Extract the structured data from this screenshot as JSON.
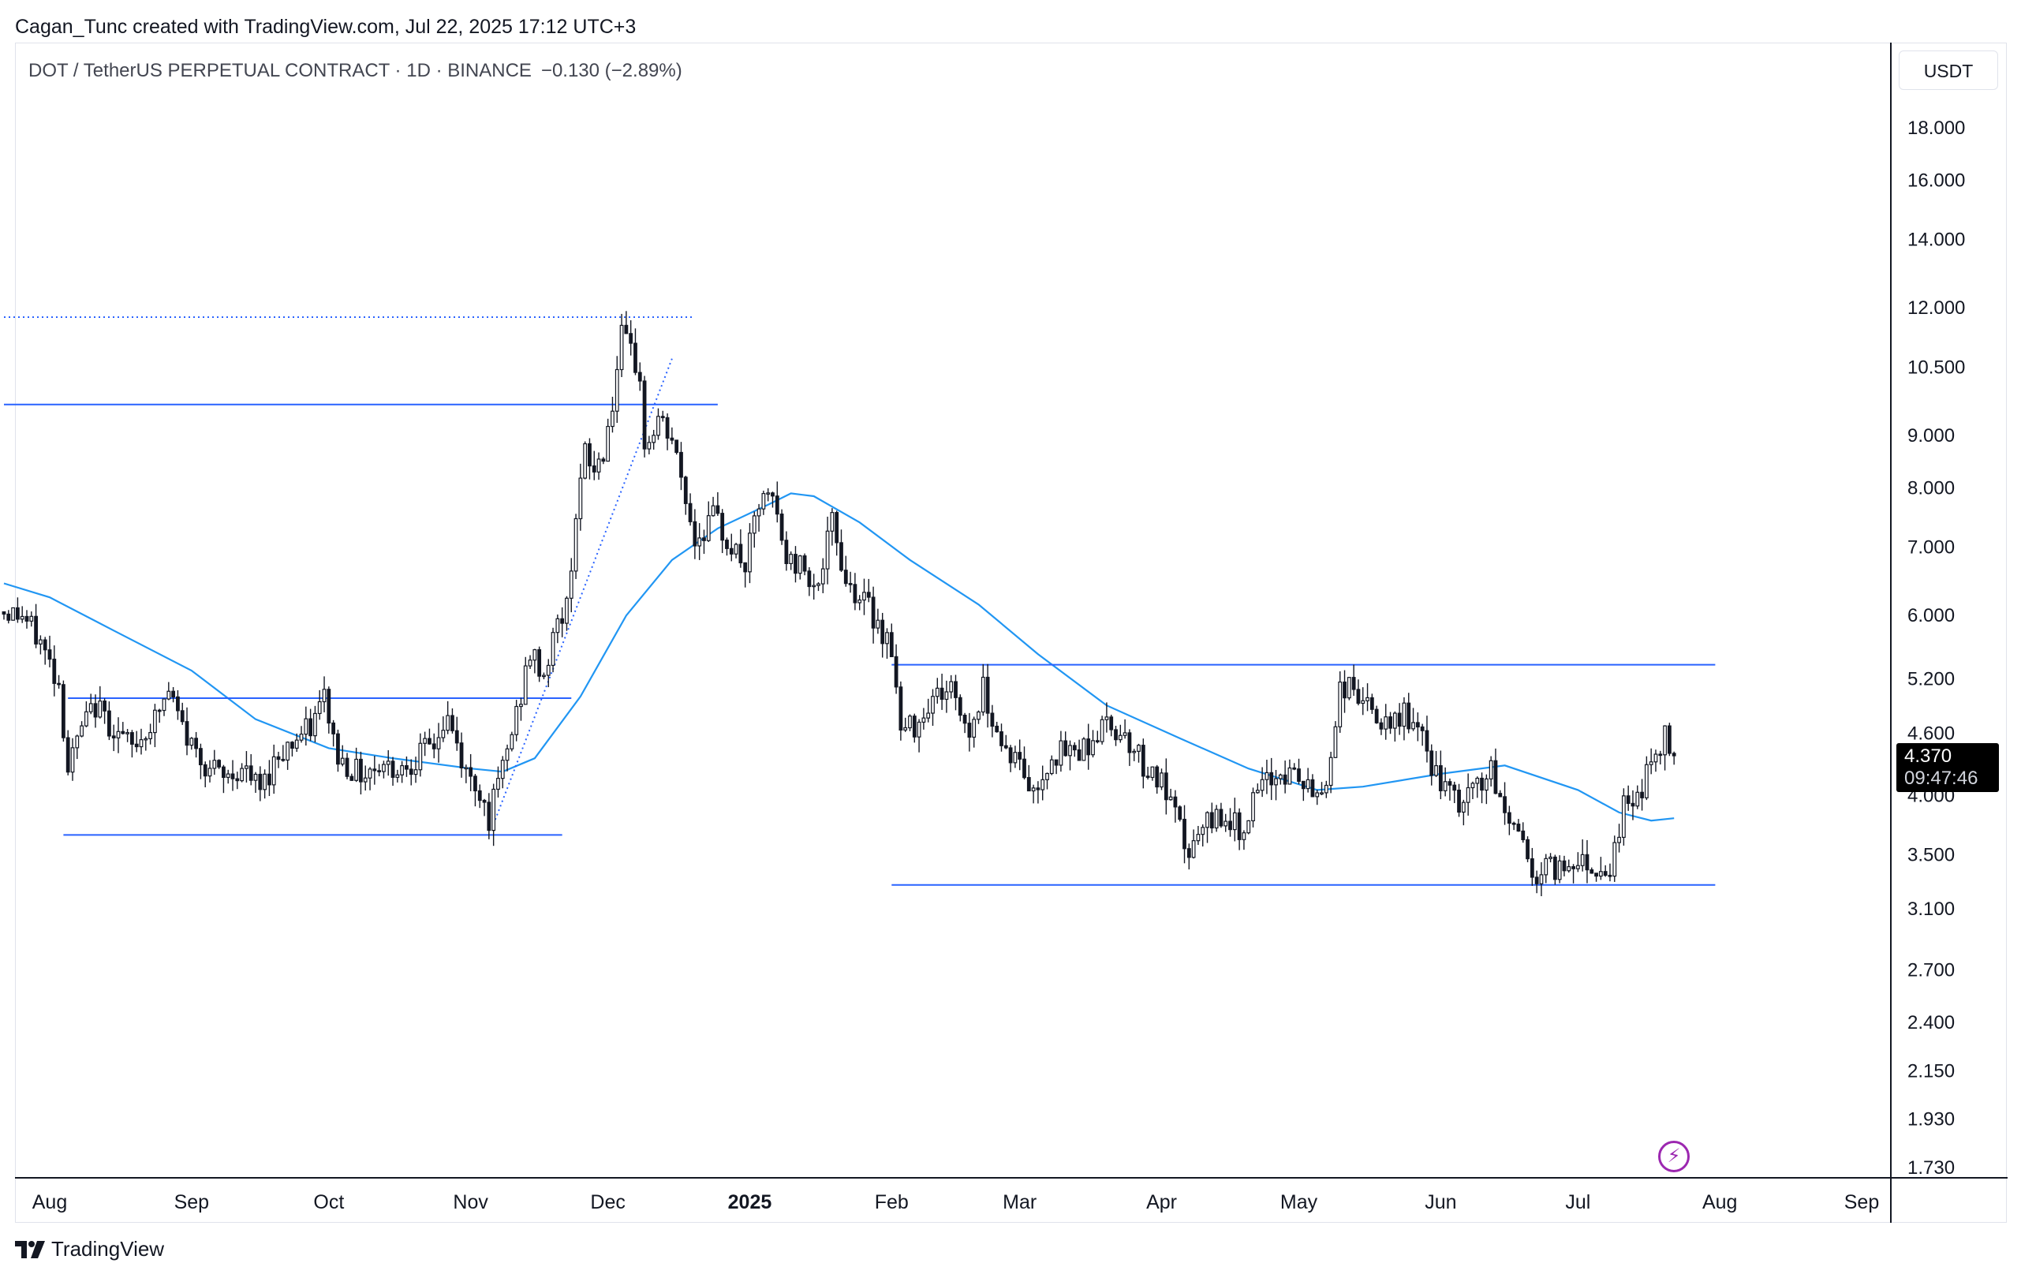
{
  "header": {
    "credit": "Cagan_Tunc created with TradingView.com, Jul 22, 2025 17:12 UTC+3"
  },
  "symbol": {
    "title": "DOT / TetherUS PERPETUAL CONTRACT · 1D · BINANCE",
    "change": "−0.130 (−2.89%)"
  },
  "currency": "USDT",
  "last_price": {
    "value": "4.370",
    "countdown": "09:47:46"
  },
  "brand": "TradingView",
  "colors": {
    "up": "#ffffff",
    "down": "#131722",
    "wick": "#131722",
    "ma": "#2196f3",
    "levels": "#2962ff",
    "tag_bg": "#000000",
    "accent": "#9c27b0"
  },
  "icons": {
    "brand": "tradingview-logo-icon",
    "alert": "lightning-icon"
  },
  "chart_data": {
    "type": "candlestick",
    "scale": "log",
    "ylim": [
      1.7,
      20.5
    ],
    "y_ticks": [
      {
        "value": 18.0,
        "label": "18.000"
      },
      {
        "value": 16.0,
        "label": "16.000"
      },
      {
        "value": 14.0,
        "label": "14.000"
      },
      {
        "value": 12.0,
        "label": "12.000"
      },
      {
        "value": 10.5,
        "label": "10.500"
      },
      {
        "value": 9.0,
        "label": "9.000"
      },
      {
        "value": 8.0,
        "label": "8.000"
      },
      {
        "value": 7.0,
        "label": "7.000"
      },
      {
        "value": 6.0,
        "label": "6.000"
      },
      {
        "value": 5.2,
        "label": "5.200"
      },
      {
        "value": 4.6,
        "label": "4.600"
      },
      {
        "value": 4.0,
        "label": "4.000"
      },
      {
        "value": 3.5,
        "label": "3.500"
      },
      {
        "value": 3.1,
        "label": "3.100"
      },
      {
        "value": 2.7,
        "label": "2.700"
      },
      {
        "value": 2.4,
        "label": "2.400"
      },
      {
        "value": 2.15,
        "label": "2.150"
      },
      {
        "value": 1.93,
        "label": "1.930"
      },
      {
        "value": 1.73,
        "label": "1.730"
      }
    ],
    "x_range": [
      "2024-07-22",
      "2025-09-30"
    ],
    "x_ticks": [
      {
        "date": "2024-08-01",
        "label": "Aug",
        "bold": false
      },
      {
        "date": "2024-09-01",
        "label": "Sep",
        "bold": false
      },
      {
        "date": "2024-10-01",
        "label": "Oct",
        "bold": false
      },
      {
        "date": "2024-11-01",
        "label": "Nov",
        "bold": false
      },
      {
        "date": "2024-12-01",
        "label": "Dec",
        "bold": false
      },
      {
        "date": "2025-01-01",
        "label": "2025",
        "bold": true
      },
      {
        "date": "2025-02-01",
        "label": "Feb",
        "bold": false
      },
      {
        "date": "2025-03-01",
        "label": "Mar",
        "bold": false
      },
      {
        "date": "2025-04-01",
        "label": "Apr",
        "bold": false
      },
      {
        "date": "2025-05-01",
        "label": "May",
        "bold": false
      },
      {
        "date": "2025-06-01",
        "label": "Jun",
        "bold": false
      },
      {
        "date": "2025-07-01",
        "label": "Jul",
        "bold": false
      },
      {
        "date": "2025-08-01",
        "label": "Aug",
        "bold": false
      },
      {
        "date": "2025-09-01",
        "label": "Sep",
        "bold": false
      }
    ],
    "close_path": [
      [
        "2024-07-22",
        6.05
      ],
      [
        "2024-07-26",
        6.0
      ],
      [
        "2024-07-30",
        5.65
      ],
      [
        "2024-08-03",
        5.15
      ],
      [
        "2024-08-05",
        4.25
      ],
      [
        "2024-08-08",
        4.65
      ],
      [
        "2024-08-11",
        4.9
      ],
      [
        "2024-08-15",
        4.65
      ],
      [
        "2024-08-19",
        4.45
      ],
      [
        "2024-08-24",
        4.75
      ],
      [
        "2024-08-27",
        5.05
      ],
      [
        "2024-08-31",
        4.55
      ],
      [
        "2024-09-04",
        4.3
      ],
      [
        "2024-09-08",
        4.15
      ],
      [
        "2024-09-12",
        4.25
      ],
      [
        "2024-09-16",
        4.05
      ],
      [
        "2024-09-20",
        4.4
      ],
      [
        "2024-09-24",
        4.55
      ],
      [
        "2024-09-27",
        4.65
      ],
      [
        "2024-09-30",
        5.0
      ],
      [
        "2024-10-03",
        4.35
      ],
      [
        "2024-10-08",
        4.2
      ],
      [
        "2024-10-12",
        4.3
      ],
      [
        "2024-10-16",
        4.25
      ],
      [
        "2024-10-20",
        4.35
      ],
      [
        "2024-10-24",
        4.5
      ],
      [
        "2024-10-27",
        4.75
      ],
      [
        "2024-10-31",
        4.2
      ],
      [
        "2024-11-03",
        4.05
      ],
      [
        "2024-11-05",
        3.8
      ],
      [
        "2024-11-08",
        4.25
      ],
      [
        "2024-11-11",
        4.8
      ],
      [
        "2024-11-14",
        5.5
      ],
      [
        "2024-11-17",
        5.25
      ],
      [
        "2024-11-20",
        5.9
      ],
      [
        "2024-11-22",
        6.1
      ],
      [
        "2024-11-24",
        7.6
      ],
      [
        "2024-11-26",
        8.6
      ],
      [
        "2024-11-28",
        8.3
      ],
      [
        "2024-11-30",
        8.7
      ],
      [
        "2024-12-02",
        9.7
      ],
      [
        "2024-12-04",
        11.2
      ],
      [
        "2024-12-06",
        10.8
      ],
      [
        "2024-12-08",
        10.3
      ],
      [
        "2024-12-09",
        8.7
      ],
      [
        "2024-12-12",
        9.3
      ],
      [
        "2024-12-15",
        8.9
      ],
      [
        "2024-12-18",
        7.8
      ],
      [
        "2024-12-20",
        7.1
      ],
      [
        "2024-12-24",
        7.5
      ],
      [
        "2024-12-28",
        7.0
      ],
      [
        "2024-12-31",
        6.7
      ],
      [
        "2025-01-03",
        7.7
      ],
      [
        "2025-01-06",
        7.8
      ],
      [
        "2025-01-09",
        6.8
      ],
      [
        "2025-01-13",
        6.7
      ],
      [
        "2025-01-16",
        6.4
      ],
      [
        "2025-01-19",
        7.4
      ],
      [
        "2025-01-22",
        6.5
      ],
      [
        "2025-01-26",
        6.2
      ],
      [
        "2025-01-29",
        5.9
      ],
      [
        "2025-02-01",
        5.6
      ],
      [
        "2025-02-03",
        4.6
      ],
      [
        "2025-02-06",
        4.7
      ],
      [
        "2025-02-10",
        5.0
      ],
      [
        "2025-02-14",
        5.1
      ],
      [
        "2025-02-18",
        4.6
      ],
      [
        "2025-02-21",
        5.1
      ],
      [
        "2025-02-25",
        4.5
      ],
      [
        "2025-03-01",
        4.3
      ],
      [
        "2025-03-04",
        4.0
      ],
      [
        "2025-03-08",
        4.4
      ],
      [
        "2025-03-12",
        4.4
      ],
      [
        "2025-03-16",
        4.5
      ],
      [
        "2025-03-20",
        4.7
      ],
      [
        "2025-03-24",
        4.6
      ],
      [
        "2025-03-28",
        4.3
      ],
      [
        "2025-04-01",
        4.1
      ],
      [
        "2025-04-04",
        3.8
      ],
      [
        "2025-04-07",
        3.5
      ],
      [
        "2025-04-10",
        3.7
      ],
      [
        "2025-04-14",
        3.85
      ],
      [
        "2025-04-18",
        3.7
      ],
      [
        "2025-04-22",
        4.0
      ],
      [
        "2025-04-26",
        4.2
      ],
      [
        "2025-04-30",
        4.2
      ],
      [
        "2025-05-04",
        4.0
      ],
      [
        "2025-05-07",
        4.1
      ],
      [
        "2025-05-10",
        5.1
      ],
      [
        "2025-05-13",
        5.1
      ],
      [
        "2025-05-17",
        4.8
      ],
      [
        "2025-05-21",
        4.6
      ],
      [
        "2025-05-24",
        4.85
      ],
      [
        "2025-05-28",
        4.5
      ],
      [
        "2025-06-01",
        4.1
      ],
      [
        "2025-06-05",
        3.9
      ],
      [
        "2025-06-09",
        4.1
      ],
      [
        "2025-06-12",
        4.2
      ],
      [
        "2025-06-15",
        3.85
      ],
      [
        "2025-06-18",
        3.7
      ],
      [
        "2025-06-22",
        3.3
      ],
      [
        "2025-06-24",
        3.4
      ],
      [
        "2025-06-28",
        3.4
      ],
      [
        "2025-07-01",
        3.5
      ],
      [
        "2025-07-04",
        3.4
      ],
      [
        "2025-07-08",
        3.4
      ],
      [
        "2025-07-11",
        3.9
      ],
      [
        "2025-07-14",
        4.0
      ],
      [
        "2025-07-17",
        4.3
      ],
      [
        "2025-07-20",
        4.55
      ],
      [
        "2025-07-22",
        4.37
      ]
    ],
    "ma": [
      [
        "2024-07-22",
        6.45
      ],
      [
        "2024-08-01",
        6.25
      ],
      [
        "2024-08-15",
        5.8
      ],
      [
        "2024-09-01",
        5.3
      ],
      [
        "2024-09-15",
        4.75
      ],
      [
        "2024-10-01",
        4.45
      ],
      [
        "2024-10-15",
        4.35
      ],
      [
        "2024-11-01",
        4.25
      ],
      [
        "2024-11-08",
        4.22
      ],
      [
        "2024-11-15",
        4.35
      ],
      [
        "2024-11-25",
        5.0
      ],
      [
        "2024-12-05",
        6.0
      ],
      [
        "2024-12-15",
        6.8
      ],
      [
        "2024-12-25",
        7.3
      ],
      [
        "2025-01-05",
        7.7
      ],
      [
        "2025-01-10",
        7.9
      ],
      [
        "2025-01-15",
        7.85
      ],
      [
        "2025-01-25",
        7.4
      ],
      [
        "2025-02-05",
        6.8
      ],
      [
        "2025-02-20",
        6.15
      ],
      [
        "2025-03-05",
        5.5
      ],
      [
        "2025-03-20",
        4.9
      ],
      [
        "2025-04-05",
        4.55
      ],
      [
        "2025-04-20",
        4.25
      ],
      [
        "2025-05-05",
        4.05
      ],
      [
        "2025-05-15",
        4.08
      ],
      [
        "2025-06-01",
        4.2
      ],
      [
        "2025-06-15",
        4.28
      ],
      [
        "2025-07-01",
        4.05
      ],
      [
        "2025-07-10",
        3.85
      ],
      [
        "2025-07-17",
        3.78
      ],
      [
        "2025-07-22",
        3.8
      ]
    ],
    "levels": [
      {
        "style": "dotted",
        "from": "2024-07-22",
        "to": "2024-12-20",
        "price": 11.75
      },
      {
        "style": "solid",
        "from": "2024-07-22",
        "to": "2024-12-25",
        "price": 9.65
      },
      {
        "style": "solid",
        "from": "2024-08-05",
        "to": "2024-11-23",
        "price": 4.98
      },
      {
        "style": "solid",
        "from": "2024-08-04",
        "to": "2024-11-21",
        "price": 3.66
      },
      {
        "style": "solid",
        "from": "2025-02-01",
        "to": "2025-07-31",
        "price": 5.37
      },
      {
        "style": "solid",
        "from": "2025-02-01",
        "to": "2025-07-31",
        "price": 3.27
      }
    ],
    "trendline": {
      "style": "dotted",
      "from": [
        "2024-11-06",
        3.75
      ],
      "to": [
        "2024-12-15",
        10.7
      ]
    }
  }
}
